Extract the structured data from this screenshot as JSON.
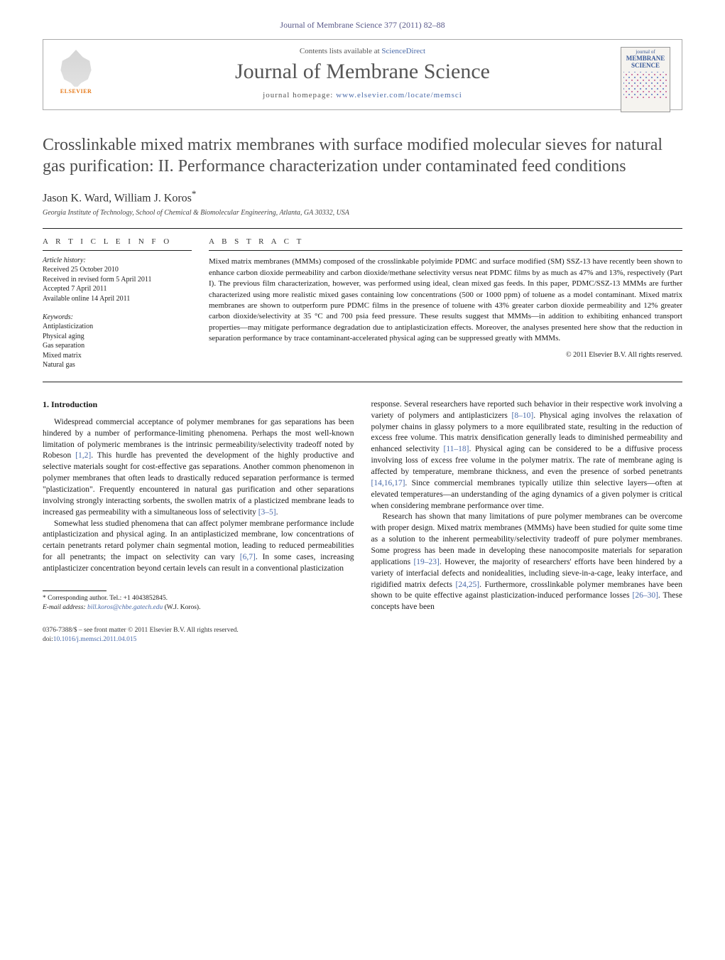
{
  "header": {
    "running_head": "Journal of Membrane Science 377 (2011) 82–88"
  },
  "banner": {
    "contents_line_pre": "Contents lists available at ",
    "contents_link": "ScienceDirect",
    "journal_title": "Journal of Membrane Science",
    "homepage_pre": "journal homepage: ",
    "homepage_url": "www.elsevier.com/locate/memsci",
    "publisher_name": "ELSEVIER",
    "cover": {
      "line1": "journal of",
      "line2_b": "MEMBRANE",
      "line3_b": "SCIENCE"
    }
  },
  "article": {
    "title": "Crosslinkable mixed matrix membranes with surface modified molecular sieves for natural gas purification: II. Performance characterization under contaminated feed conditions",
    "authors": "Jason K. Ward, William J. Koros",
    "asterisk": "*",
    "affiliation": "Georgia Institute of Technology, School of Chemical & Biomolecular Engineering, Atlanta, GA 30332, USA"
  },
  "info": {
    "section_label": "a r t i c l e   i n f o",
    "history_head": "Article history:",
    "history": [
      "Received 25 October 2010",
      "Received in revised form 5 April 2011",
      "Accepted 7 April 2011",
      "Available online 14 April 2011"
    ],
    "keywords_head": "Keywords:",
    "keywords": [
      "Antiplasticization",
      "Physical aging",
      "Gas separation",
      "Mixed matrix",
      "Natural gas"
    ]
  },
  "abstract": {
    "section_label": "a b s t r a c t",
    "text": "Mixed matrix membranes (MMMs) composed of the crosslinkable polyimide PDMC and surface modified (SM) SSZ-13 have recently been shown to enhance carbon dioxide permeability and carbon dioxide/methane selectivity versus neat PDMC films by as much as 47% and 13%, respectively (Part I). The previous film characterization, however, was performed using ideal, clean mixed gas feeds. In this paper, PDMC/SSZ-13 MMMs are further characterized using more realistic mixed gases containing low concentrations (500 or 1000 ppm) of toluene as a model contaminant. Mixed matrix membranes are shown to outperform pure PDMC films in the presence of toluene with 43% greater carbon dioxide permeability and 12% greater carbon dioxide/selectivity at 35 °C and 700 psia feed pressure. These results suggest that MMMs—in addition to exhibiting enhanced transport properties—may mitigate performance degradation due to antiplasticization effects. Moreover, the analyses presented here show that the reduction in separation performance by trace contaminant-accelerated physical aging can be suppressed greatly with MMMs.",
    "copyright": "© 2011 Elsevier B.V. All rights reserved."
  },
  "body": {
    "left": {
      "sec_title": "1. Introduction",
      "p1_a": "Widespread commercial acceptance of polymer membranes for gas separations has been hindered by a number of performance-limiting phenomena. Perhaps the most well-known limitation of polymeric membranes is the intrinsic permeability/selectivity tradeoff noted by Robeson ",
      "p1_ref1": "[1,2]",
      "p1_b": ". This hurdle has prevented the development of the highly productive and selective materials sought for cost-effective gas separations. Another common phenomenon in polymer membranes that often leads to drastically reduced separation performance is termed \"plasticization\". Frequently encountered in natural gas purification and other separations involving strongly interacting sorbents, the swollen matrix of a plasticized membrane leads to increased gas permeability with a simultaneous loss of selectivity ",
      "p1_ref2": "[3–5]",
      "p1_c": ".",
      "p2_a": "Somewhat less studied phenomena that can affect polymer membrane performance include antiplasticization and physical aging. In an antiplasticized membrane, low concentrations of certain penetrants retard polymer chain segmental motion, leading to reduced permeabilities for all penetrants; the impact on selectivity can vary ",
      "p2_ref1": "[6,7]",
      "p2_b": ". In some cases, increasing antiplasticizer concentration beyond certain levels can result in a conventional plasticization"
    },
    "right": {
      "p1_a": "response. Several researchers have reported such behavior in their respective work involving a variety of polymers and antiplasticizers ",
      "p1_ref1": "[8–10]",
      "p1_b": ". Physical aging involves the relaxation of polymer chains in glassy polymers to a more equilibrated state, resulting in the reduction of excess free volume. This matrix densification generally leads to diminished permeability and enhanced selectivity ",
      "p1_ref2": "[11–18]",
      "p1_c": ". Physical aging can be considered to be a diffusive process involving loss of excess free volume in the polymer matrix. The rate of membrane aging is affected by temperature, membrane thickness, and even the presence of sorbed penetrants ",
      "p1_ref3": "[14,16,17]",
      "p1_d": ". Since commercial membranes typically utilize thin selective layers—often at elevated temperatures—an understanding of the aging dynamics of a given polymer is critical when considering membrane performance over time.",
      "p2_a": "Research has shown that many limitations of pure polymer membranes can be overcome with proper design. Mixed matrix membranes (MMMs) have been studied for quite some time as a solution to the inherent permeability/selectivity tradeoff of pure polymer membranes. Some progress has been made in developing these nanocomposite materials for separation applications ",
      "p2_ref1": "[19–23]",
      "p2_b": ". However, the majority of researchers' efforts have been hindered by a variety of interfacial defects and nonidealities, including sieve-in-a-cage, leaky interface, and rigidified matrix defects ",
      "p2_ref2": "[24,25]",
      "p2_c": ". Furthermore, crosslinkable polymer membranes have been shown to be quite effective against plasticization-induced performance losses ",
      "p2_ref3": "[26–30]",
      "p2_d": ". These concepts have been"
    }
  },
  "correspondence": {
    "line1": "* Corresponding author. Tel.: +1 4043852845.",
    "line2_pre": "E-mail address: ",
    "email": "bill.koros@chbe.gatech.edu",
    "line2_post": " (W.J. Koros)."
  },
  "footer": {
    "line1": "0376-7388/$ – see front matter © 2011 Elsevier B.V. All rights reserved.",
    "doi_pre": "doi:",
    "doi": "10.1016/j.memsci.2011.04.015"
  },
  "colors": {
    "link": "#4a6aa8",
    "text_gray": "#4d4d4d",
    "orange": "#e67817"
  }
}
